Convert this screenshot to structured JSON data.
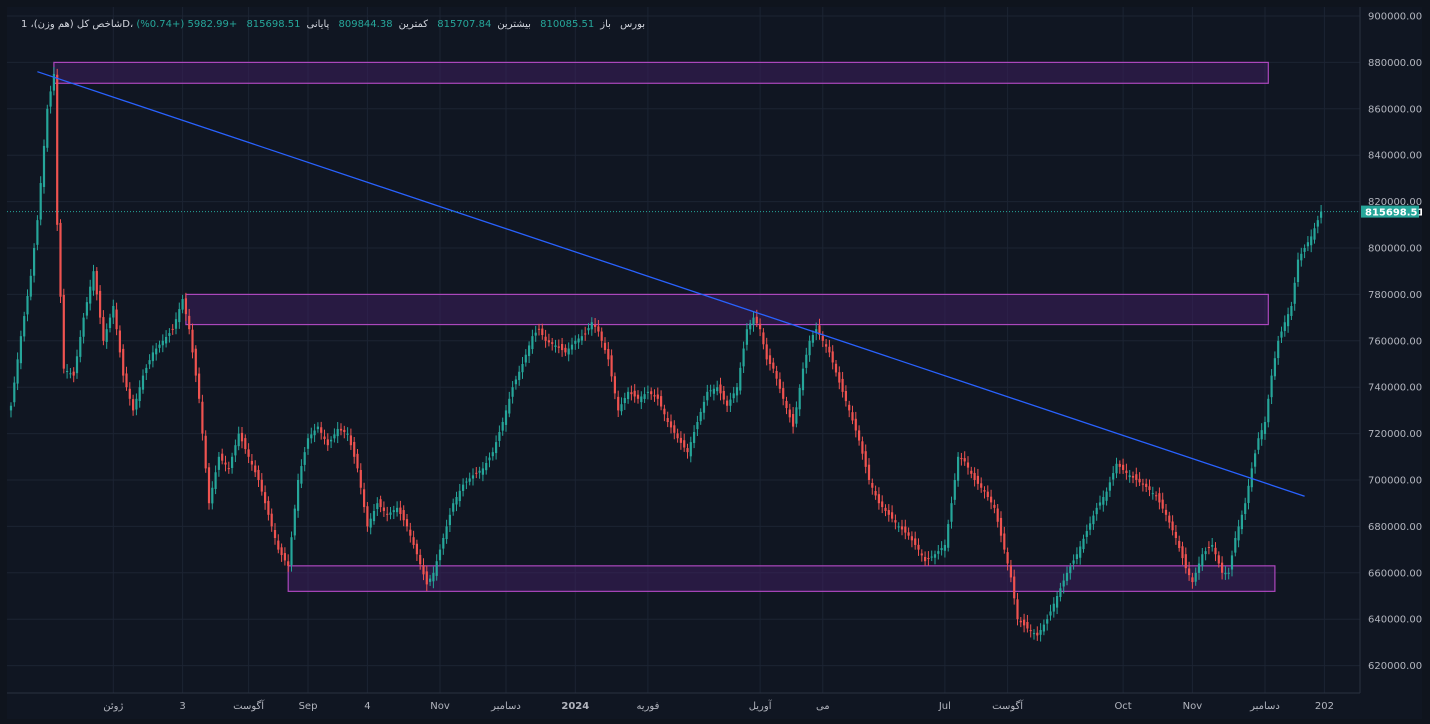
{
  "legend": {
    "symbol": "شاخص کل (هم وزن)، 1D، بورس",
    "open_label": "باز",
    "open_value": "810085.51",
    "high_label": "بیشترین",
    "high_value": "815707.84",
    "low_label": "کمترین",
    "low_value": "809844.38",
    "close_label": "پایانی",
    "close_value": "815698.51",
    "change": "+5982.99 (+0.74%)"
  },
  "colors": {
    "background": "#101622",
    "up": "#26a69a",
    "down": "#ef5350",
    "trendline": "#2962ff",
    "zone_fill": "#3c1f5c",
    "zone_border": "#ab47bc",
    "price_tag": "#26a69a",
    "axis_text": "#b2b5be",
    "grid": "#1c2433"
  },
  "chart_data": {
    "type": "candlestick",
    "grid": true,
    "ylim": [
      610000,
      905000
    ],
    "y_ticks": [
      "900000.00",
      "880000.00",
      "860000.00",
      "840000.00",
      "820000.00",
      "800000.00",
      "780000.00",
      "760000.00",
      "740000.00",
      "720000.00",
      "700000.00",
      "680000.00",
      "660000.00",
      "640000.00",
      "620000.00"
    ],
    "y_tick_values": [
      900000,
      880000,
      860000,
      840000,
      820000,
      800000,
      780000,
      760000,
      740000,
      720000,
      700000,
      680000,
      660000,
      640000,
      620000
    ],
    "x_ticks": [
      "ژوئن",
      "3",
      "آگوست",
      "Sep",
      "4",
      "Nov",
      "دسامبر",
      "2024",
      "فوریه",
      "آوریل",
      "می",
      "Jul",
      "آگوست",
      "Oct",
      "Nov",
      "دسامبر",
      "202"
    ],
    "x_tick_bar_index": [
      31,
      52,
      72,
      90,
      108,
      130,
      150,
      171,
      193,
      227,
      246,
      283,
      302,
      337,
      358,
      380,
      398
    ],
    "last_price_label": "815698.51",
    "last_price": 815698.51,
    "zones": [
      {
        "from_bar": 13,
        "to_bar": 381,
        "top": 880000,
        "bottom": 871000
      },
      {
        "from_bar": 53,
        "to_bar": 381,
        "top": 780000,
        "bottom": 767000
      },
      {
        "from_bar": 84,
        "to_bar": 383,
        "top": 663000,
        "bottom": 652000
      }
    ],
    "trendline": {
      "from_bar": 8,
      "from_value": 876000,
      "to_bar": 392,
      "to_value": 693000
    },
    "key_points": [
      [
        0,
        732000
      ],
      [
        3,
        762000
      ],
      [
        6,
        788000
      ],
      [
        8,
        812000
      ],
      [
        11,
        860000
      ],
      [
        13,
        875000
      ],
      [
        14,
        810000
      ],
      [
        16,
        748000
      ],
      [
        19,
        745000
      ],
      [
        22,
        770000
      ],
      [
        25,
        790000
      ],
      [
        28,
        760000
      ],
      [
        31,
        775000
      ],
      [
        34,
        745000
      ],
      [
        37,
        730000
      ],
      [
        40,
        745000
      ],
      [
        43,
        755000
      ],
      [
        46,
        760000
      ],
      [
        49,
        765000
      ],
      [
        52,
        778000
      ],
      [
        54,
        765000
      ],
      [
        57,
        735000
      ],
      [
        60,
        690000
      ],
      [
        63,
        710000
      ],
      [
        66,
        705000
      ],
      [
        69,
        720000
      ],
      [
        72,
        710000
      ],
      [
        75,
        700000
      ],
      [
        78,
        685000
      ],
      [
        81,
        670000
      ],
      [
        84,
        663000
      ],
      [
        87,
        700000
      ],
      [
        90,
        718000
      ],
      [
        93,
        723000
      ],
      [
        96,
        715000
      ],
      [
        99,
        722000
      ],
      [
        102,
        720000
      ],
      [
        105,
        705000
      ],
      [
        108,
        680000
      ],
      [
        111,
        690000
      ],
      [
        114,
        685000
      ],
      [
        117,
        688000
      ],
      [
        120,
        680000
      ],
      [
        123,
        668000
      ],
      [
        126,
        655000
      ],
      [
        128,
        660000
      ],
      [
        131,
        675000
      ],
      [
        134,
        690000
      ],
      [
        137,
        698000
      ],
      [
        140,
        702000
      ],
      [
        143,
        705000
      ],
      [
        146,
        712000
      ],
      [
        149,
        725000
      ],
      [
        152,
        740000
      ],
      [
        155,
        750000
      ],
      [
        158,
        762000
      ],
      [
        160,
        765000
      ],
      [
        162,
        760000
      ],
      [
        165,
        758000
      ],
      [
        168,
        755000
      ],
      [
        171,
        760000
      ],
      [
        174,
        763000
      ],
      [
        176,
        768000
      ],
      [
        178,
        764000
      ],
      [
        181,
        752000
      ],
      [
        184,
        730000
      ],
      [
        187,
        738000
      ],
      [
        190,
        735000
      ],
      [
        193,
        738000
      ],
      [
        196,
        735000
      ],
      [
        199,
        725000
      ],
      [
        202,
        718000
      ],
      [
        205,
        712000
      ],
      [
        208,
        725000
      ],
      [
        211,
        738000
      ],
      [
        214,
        740000
      ],
      [
        217,
        732000
      ],
      [
        220,
        740000
      ],
      [
        223,
        765000
      ],
      [
        225,
        770000
      ],
      [
        227,
        765000
      ],
      [
        229,
        752000
      ],
      [
        231,
        748000
      ],
      [
        234,
        735000
      ],
      [
        237,
        723000
      ],
      [
        240,
        748000
      ],
      [
        242,
        760000
      ],
      [
        244,
        765000
      ],
      [
        246,
        760000
      ],
      [
        248,
        755000
      ],
      [
        251,
        742000
      ],
      [
        254,
        730000
      ],
      [
        257,
        717000
      ],
      [
        260,
        700000
      ],
      [
        263,
        690000
      ],
      [
        266,
        685000
      ],
      [
        269,
        680000
      ],
      [
        272,
        676000
      ],
      [
        275,
        670000
      ],
      [
        277,
        665000
      ],
      [
        280,
        668000
      ],
      [
        283,
        672000
      ],
      [
        285,
        690000
      ],
      [
        287,
        710000
      ],
      [
        289,
        708000
      ],
      [
        292,
        700000
      ],
      [
        295,
        695000
      ],
      [
        298,
        688000
      ],
      [
        301,
        670000
      ],
      [
        303,
        658000
      ],
      [
        305,
        640000
      ],
      [
        308,
        636000
      ],
      [
        311,
        633000
      ],
      [
        314,
        640000
      ],
      [
        317,
        650000
      ],
      [
        320,
        660000
      ],
      [
        323,
        668000
      ],
      [
        326,
        678000
      ],
      [
        329,
        688000
      ],
      [
        332,
        695000
      ],
      [
        335,
        707000
      ],
      [
        338,
        703000
      ],
      [
        341,
        700000
      ],
      [
        344,
        697000
      ],
      [
        347,
        693000
      ],
      [
        350,
        685000
      ],
      [
        353,
        675000
      ],
      [
        356,
        662000
      ],
      [
        358,
        656000
      ],
      [
        361,
        668000
      ],
      [
        364,
        672000
      ],
      [
        367,
        660000
      ],
      [
        369,
        660000
      ],
      [
        371,
        675000
      ],
      [
        374,
        690000
      ],
      [
        376,
        705000
      ],
      [
        378,
        718000
      ],
      [
        380,
        725000
      ],
      [
        382,
        745000
      ],
      [
        384,
        760000
      ],
      [
        386,
        768000
      ],
      [
        388,
        775000
      ],
      [
        390,
        795000
      ],
      [
        392,
        800000
      ],
      [
        394,
        805000
      ],
      [
        396,
        812000
      ],
      [
        397,
        815698
      ]
    ]
  }
}
